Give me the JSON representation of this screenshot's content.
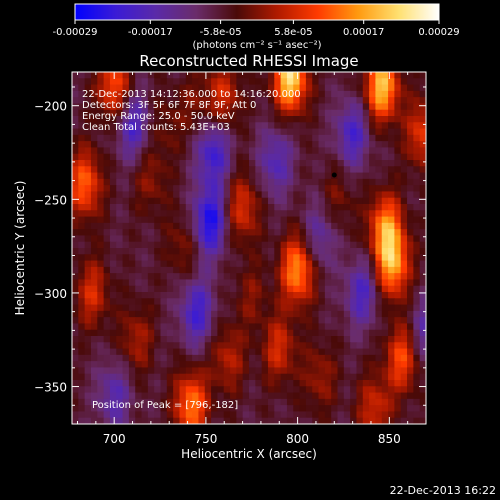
{
  "colorbar": {
    "tick_labels": [
      "-0.00029",
      "-0.00017",
      "-5.8e-05",
      "5.8e-05",
      "0.00017",
      "0.00029"
    ],
    "tick_values": [
      -0.00029,
      -0.00017,
      -5.8e-05,
      5.8e-05,
      0.00017,
      0.00029
    ],
    "range": [
      -0.00029,
      0.00029
    ],
    "unit_label": "(photons cm⁻² s⁻¹ asec⁻²)",
    "colors": [
      "#0000ff",
      "#3a1bd6",
      "#5a2aa8",
      "#6a2c6a",
      "#4a0a08",
      "#b01a00",
      "#ff3a00",
      "#ff9a10",
      "#ffe070",
      "#ffffff"
    ]
  },
  "chart_data": {
    "type": "heatmap",
    "title": "Reconstructed RHESSI Image",
    "xlabel": "Heliocentric X (arcsec)",
    "ylabel": "Heliocentric Y (arcsec)",
    "xlim": [
      677,
      870
    ],
    "ylim": [
      -370,
      -182
    ],
    "xticks": [
      700,
      750,
      800,
      850
    ],
    "yticks": [
      -200,
      -250,
      -300,
      -350
    ],
    "xtick_labels": [
      "700",
      "750",
      "800",
      "850"
    ],
    "ytick_labels": [
      "−200",
      "−250",
      "−300",
      "−350"
    ],
    "annotations": [
      "22-Dec-2013 14:12:36.000 to 14:16:20.000",
      "Detectors: 3F 5F 6F 7F 8F 9F, Att 0",
      "Energy Range: 25.0 - 50.0 keV",
      "Clean     Total counts: 5.43E+03"
    ],
    "peak_label": "Position of Peak = [796,-182]",
    "peak": [
      796,
      -182
    ],
    "marker": [
      820,
      -237
    ],
    "blobs": [
      {
        "x": 700,
        "y": -190,
        "v": 0.00017
      },
      {
        "x": 684,
        "y": -242,
        "v": 0.00018
      },
      {
        "x": 688,
        "y": -300,
        "v": 0.00012
      },
      {
        "x": 720,
        "y": -240,
        "v": 7e-05
      },
      {
        "x": 745,
        "y": -200,
        "v": 6e-05
      },
      {
        "x": 738,
        "y": -275,
        "v": 7e-05
      },
      {
        "x": 760,
        "y": -195,
        "v": 0.00012
      },
      {
        "x": 770,
        "y": -255,
        "v": 0.00013
      },
      {
        "x": 796,
        "y": -185,
        "v": 0.00029
      },
      {
        "x": 800,
        "y": -288,
        "v": 0.00022
      },
      {
        "x": 790,
        "y": -330,
        "v": 0.00012
      },
      {
        "x": 812,
        "y": -345,
        "v": 8e-05
      },
      {
        "x": 822,
        "y": -250,
        "v": 6e-05
      },
      {
        "x": 846,
        "y": -190,
        "v": 0.00026
      },
      {
        "x": 848,
        "y": -265,
        "v": 0.0002
      },
      {
        "x": 852,
        "y": -285,
        "v": 0.00022
      },
      {
        "x": 857,
        "y": -335,
        "v": 0.00016
      },
      {
        "x": 842,
        "y": -362,
        "v": 0.00012
      },
      {
        "x": 712,
        "y": -325,
        "v": 9e-05
      },
      {
        "x": 742,
        "y": -360,
        "v": 0.0002
      },
      {
        "x": 762,
        "y": -335,
        "v": 0.0001
      },
      {
        "x": 868,
        "y": -215,
        "v": 0.00014
      },
      {
        "x": 728,
        "y": -210,
        "v": 5e-05
      },
      {
        "x": 775,
        "y": -302,
        "v": 6e-05
      }
    ],
    "troughs": [
      {
        "x": 710,
        "y": -210,
        "v": -0.00014
      },
      {
        "x": 752,
        "y": -262,
        "v": -0.0002
      },
      {
        "x": 754,
        "y": -225,
        "v": -0.00016
      },
      {
        "x": 745,
        "y": -310,
        "v": -0.00015
      },
      {
        "x": 788,
        "y": -230,
        "v": -0.00012
      },
      {
        "x": 830,
        "y": -215,
        "v": -0.00014
      },
      {
        "x": 835,
        "y": -300,
        "v": -0.00013
      },
      {
        "x": 870,
        "y": -320,
        "v": -0.0001
      },
      {
        "x": 700,
        "y": -355,
        "v": -0.00011
      },
      {
        "x": 812,
        "y": -270,
        "v": -0.0001
      }
    ]
  },
  "footer": {
    "timestamp": "22-Dec-2013 16:22"
  }
}
